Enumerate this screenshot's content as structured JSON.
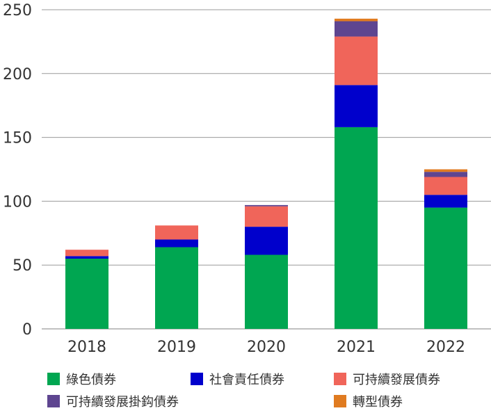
{
  "chart_data": {
    "type": "bar",
    "stacked": true,
    "categories": [
      "2018",
      "2019",
      "2020",
      "2021",
      "2022"
    ],
    "ylim": [
      0,
      250
    ],
    "yticks": [
      0,
      50,
      100,
      150,
      200,
      250
    ],
    "grid": true,
    "legend_position": "bottom",
    "series": [
      {
        "name": "綠色債券",
        "color": "#00a651",
        "values": [
          55,
          64,
          58,
          158,
          95
        ]
      },
      {
        "name": "社會責任債券",
        "color": "#0000cc",
        "values": [
          2,
          6,
          22,
          33,
          10
        ]
      },
      {
        "name": "可持續發展債券",
        "color": "#f0655a",
        "values": [
          5,
          11,
          16,
          38,
          14
        ]
      },
      {
        "name": "可持續發展掛鈎債券",
        "color": "#5e4590",
        "values": [
          0,
          0,
          1,
          12,
          4
        ]
      },
      {
        "name": "轉型債券",
        "color": "#e07b20",
        "values": [
          0,
          0,
          0,
          2,
          2
        ]
      }
    ]
  }
}
